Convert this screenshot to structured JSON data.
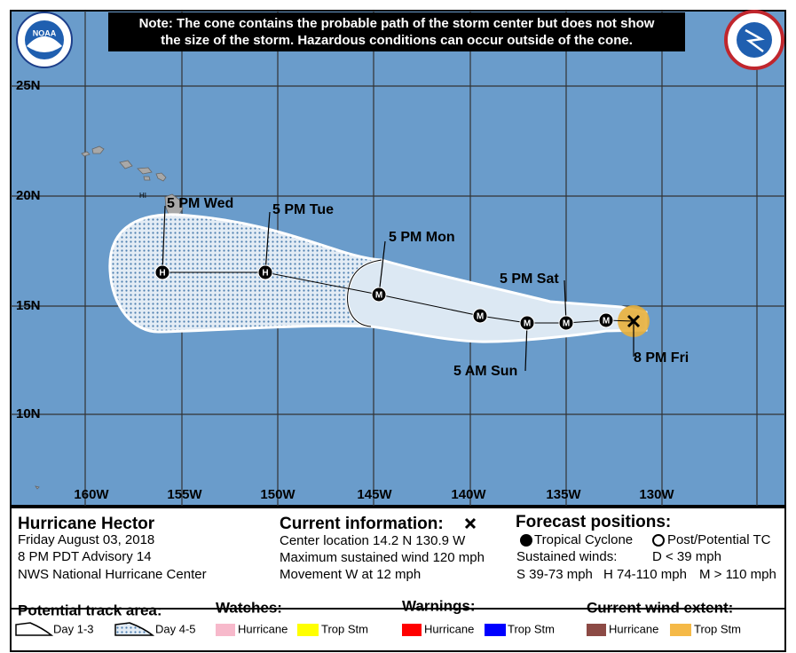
{
  "note": {
    "line1": "Note: The cone contains the probable path of the storm center but does not show",
    "line2": "the size of the storm. Hazardous conditions can occur outside of the cone."
  },
  "logo": {
    "noaa": "NOAA"
  },
  "map": {
    "lat_labels": [
      "25N",
      "20N",
      "15N",
      "10N"
    ],
    "lon_labels": [
      "160W",
      "155W",
      "150W",
      "145W",
      "140W",
      "135W",
      "130W"
    ],
    "region_label": "HI",
    "track_symbols": [
      "H",
      "H",
      "M",
      "M",
      "M",
      "M",
      "M"
    ],
    "time_labels": [
      "5 PM Wed",
      "5 PM Tue",
      "5 PM Mon",
      "5 PM Sat",
      "5 AM Sun",
      "8 PM Fri"
    ]
  },
  "info": {
    "title": "Hurricane Hector",
    "date": "Friday August 03, 2018",
    "advisory": "8 PM PDT Advisory 14",
    "source": "NWS National Hurricane Center"
  },
  "current": {
    "title": "Current information:",
    "center": "Center location 14.2 N 130.9 W",
    "wind": "Maximum sustained wind 120 mph",
    "movement": "Movement W at 12 mph"
  },
  "forecast": {
    "title": "Forecast positions:",
    "tropical": "Tropical Cyclone",
    "post": "Post/Potential TC",
    "sustained": "Sustained winds:",
    "d": "D < 39 mph",
    "s": "S 39-73 mph",
    "h": "H 74-110 mph",
    "m": "M > 110 mph"
  },
  "legend": {
    "track_title": "Potential track area:",
    "day13": "Day 1-3",
    "day45": "Day 4-5",
    "watches": "Watches:",
    "watch_hurricane": "Hurricane",
    "watch_trop": "Trop Stm",
    "warnings": "Warnings:",
    "warn_hurricane": "Hurricane",
    "warn_trop": "Trop Stm",
    "wind_title": "Current wind extent:",
    "wind_hurricane": "Hurricane",
    "wind_trop": "Trop Stm"
  }
}
